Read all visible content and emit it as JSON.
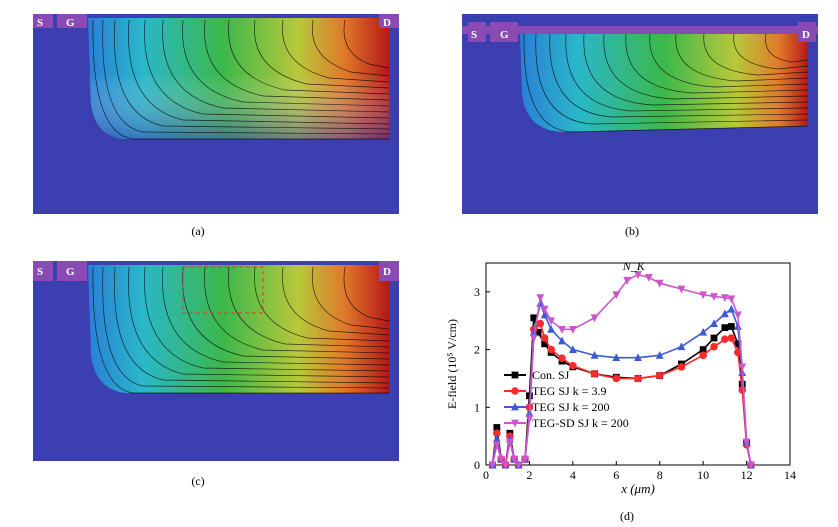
{
  "panels": [
    {
      "caption": "(a)",
      "source_label": "S",
      "gate_label": "G",
      "drain_label": "D"
    },
    {
      "caption": "(b)",
      "source_label": "S",
      "gate_label": "G",
      "drain_label": "D"
    },
    {
      "caption": "(c)",
      "source_label": "S",
      "gate_label": "G",
      "drain_label": "D"
    },
    {
      "caption": "(d)"
    }
  ],
  "colors": {
    "substrate": "#3b3faf",
    "contact": "#8a4ab3",
    "drain_hot": "#b51818",
    "series_con": "#000000",
    "series_teg39": "#ff2a2a",
    "series_teg200": "#3b5bd6",
    "series_tegsd": "#cc55cc"
  },
  "chart_data": {
    "type": "line",
    "xlabel": "x (μm)",
    "ylabel": "E-field (10⁵ V/cm)",
    "xlim": [
      0,
      14
    ],
    "ylim": [
      0,
      3.5
    ],
    "xticks": [
      0,
      2,
      4,
      6,
      8,
      10,
      12,
      14
    ],
    "yticks": [
      0,
      1,
      2,
      3
    ],
    "annotation": "N_K",
    "legend_position": "lower-left",
    "series": [
      {
        "name": "Con. SJ",
        "marker": "square",
        "x": [
          0.3,
          0.5,
          0.7,
          0.9,
          1.1,
          1.3,
          1.5,
          1.8,
          2.0,
          2.2,
          2.4,
          2.7,
          3.0,
          3.5,
          4,
          5,
          6,
          7,
          8,
          9,
          10,
          10.5,
          11,
          11.3,
          11.6,
          11.8,
          12.0,
          12.2
        ],
        "y": [
          0,
          0.65,
          0.1,
          0,
          0.55,
          0.1,
          0,
          0.1,
          1.2,
          2.55,
          2.3,
          2.1,
          1.95,
          1.8,
          1.7,
          1.58,
          1.52,
          1.5,
          1.55,
          1.75,
          2.0,
          2.2,
          2.38,
          2.4,
          2.1,
          1.4,
          0.4,
          0
        ]
      },
      {
        "name": "TEG SJ k = 3.9",
        "marker": "circle",
        "x": [
          0.3,
          0.5,
          0.7,
          0.9,
          1.1,
          1.3,
          1.5,
          1.8,
          2.0,
          2.2,
          2.5,
          2.7,
          3.0,
          3.5,
          4,
          5,
          6,
          7,
          8,
          9,
          10,
          10.5,
          11,
          11.3,
          11.6,
          11.8,
          12.0,
          12.2
        ],
        "y": [
          0,
          0.55,
          0.1,
          0,
          0.5,
          0.1,
          0,
          0.1,
          1.0,
          2.35,
          2.45,
          2.2,
          2.0,
          1.85,
          1.72,
          1.58,
          1.5,
          1.5,
          1.55,
          1.7,
          1.9,
          2.05,
          2.18,
          2.2,
          1.95,
          1.3,
          0.35,
          0
        ]
      },
      {
        "name": "TEG SJ k = 200",
        "marker": "triangle-up",
        "x": [
          0.3,
          0.5,
          0.7,
          0.9,
          1.1,
          1.3,
          1.5,
          1.8,
          2.0,
          2.2,
          2.5,
          2.7,
          3.0,
          3.5,
          4,
          5,
          6,
          7,
          8,
          9,
          10,
          10.5,
          11,
          11.3,
          11.6,
          11.8,
          12.0,
          12.2
        ],
        "y": [
          0,
          0.45,
          0.1,
          0,
          0.45,
          0.1,
          0,
          0.1,
          0.9,
          2.3,
          2.8,
          2.6,
          2.35,
          2.15,
          2.0,
          1.9,
          1.86,
          1.86,
          1.9,
          2.05,
          2.3,
          2.45,
          2.62,
          2.7,
          2.4,
          1.6,
          0.4,
          0
        ]
      },
      {
        "name": "TEG-SD SJ k = 200",
        "marker": "triangle-down",
        "x": [
          0.3,
          0.5,
          0.7,
          0.9,
          1.1,
          1.3,
          1.5,
          1.8,
          2.0,
          2.2,
          2.5,
          2.7,
          3.0,
          3.5,
          4,
          5,
          6,
          6.5,
          7,
          7.5,
          8,
          9,
          10,
          10.5,
          11,
          11.3,
          11.6,
          11.8,
          12.0,
          12.2
        ],
        "y": [
          0,
          0.35,
          0.1,
          0,
          0.4,
          0.1,
          0,
          0.1,
          0.8,
          2.2,
          2.9,
          2.7,
          2.5,
          2.35,
          2.35,
          2.55,
          2.95,
          3.2,
          3.3,
          3.25,
          3.15,
          3.05,
          2.95,
          2.92,
          2.9,
          2.88,
          2.6,
          1.7,
          0.4,
          0
        ]
      }
    ]
  }
}
